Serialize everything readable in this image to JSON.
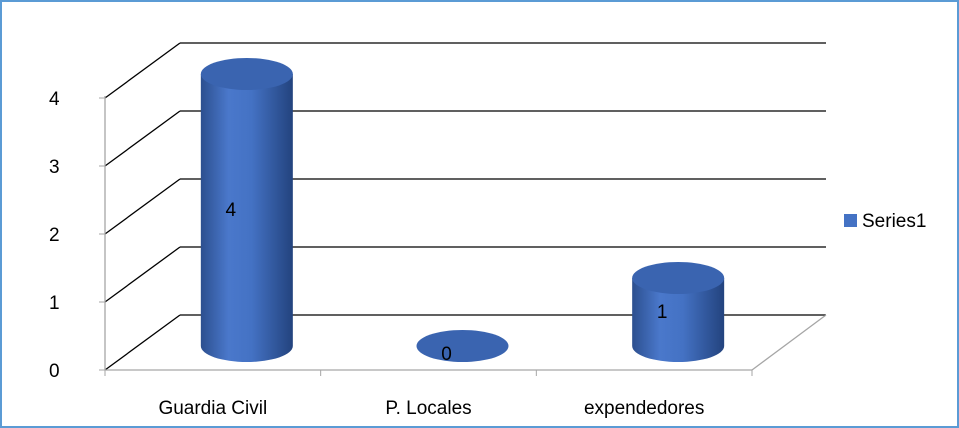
{
  "chart_data": {
    "type": "bar",
    "style": "3d-cylinder",
    "categories": [
      "Guardia Civil",
      "P. Locales",
      "expendedores"
    ],
    "series": [
      {
        "name": "Series1",
        "values": [
          4,
          0,
          1
        ],
        "color": "#4472c4"
      }
    ],
    "data_labels": [
      "4",
      "0",
      "1"
    ],
    "ylim": [
      0,
      4
    ],
    "yticks": [
      "0",
      "1",
      "2",
      "3",
      "4"
    ],
    "grid": true,
    "legend_position": "right"
  },
  "colors": {
    "frame_border": "#5b9bd5",
    "bar_fill": "#4472c4",
    "bar_dark": "#2f528f",
    "bar_top": "#3a64b0",
    "gridline": "#000000",
    "floor": "#a6a6a6"
  }
}
